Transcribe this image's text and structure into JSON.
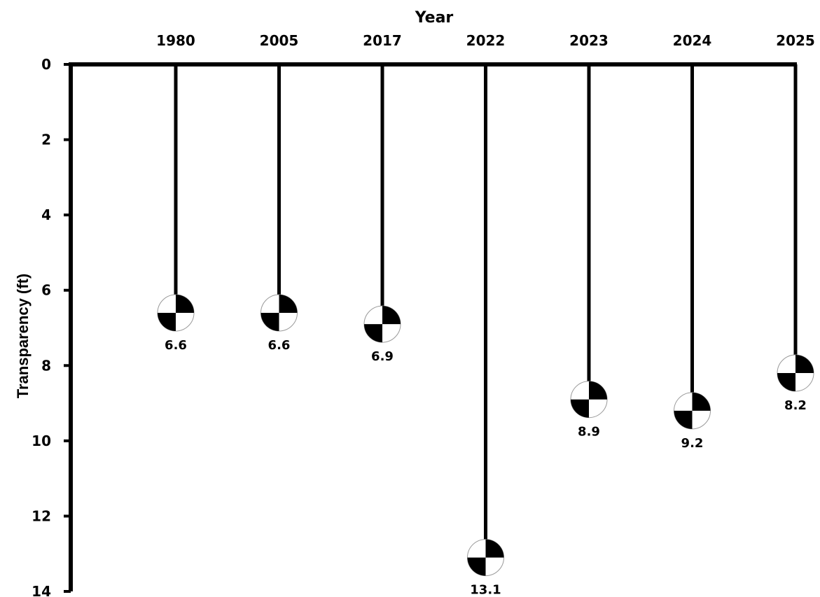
{
  "chart_data": {
    "type": "scatter",
    "xlabel": "Year",
    "ylabel": "Transparency (ft)",
    "categories": [
      "1980",
      "2005",
      "2017",
      "2022",
      "2023",
      "2024",
      "2025"
    ],
    "values": [
      6.6,
      6.6,
      6.9,
      13.1,
      8.9,
      9.2,
      8.2
    ],
    "data_labels": [
      "6.6",
      "6.6",
      "6.9",
      "13.1",
      "8.9",
      "9.2",
      "8.2"
    ],
    "ylim": [
      0,
      14
    ],
    "y_inverted": true,
    "yticks": [
      "0",
      "2",
      "4",
      "6",
      "8",
      "10",
      "12",
      "14"
    ],
    "x_axis_position": "top",
    "marker": "secchi-disk",
    "grid": false,
    "colors": {
      "line": "#000000",
      "disk_dark": "#000000",
      "disk_light": "#ffffff"
    }
  }
}
